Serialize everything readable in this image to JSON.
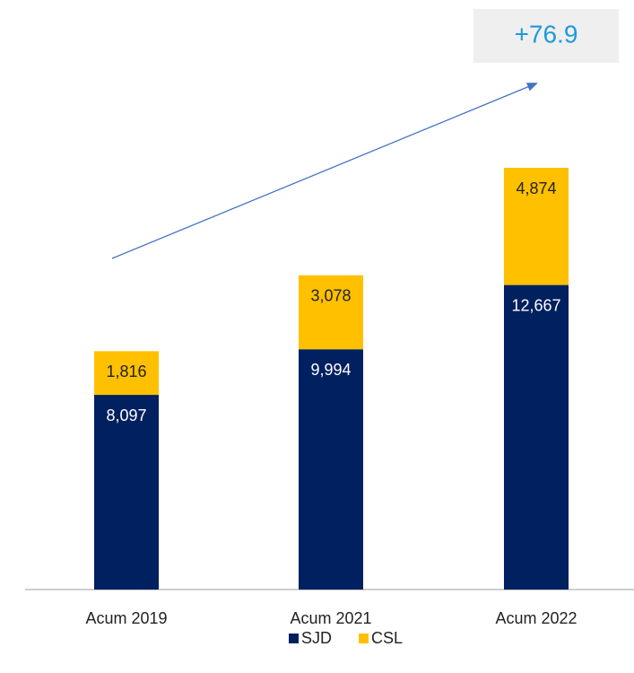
{
  "chart_data": {
    "type": "stacked_bar",
    "categories": [
      "Acum 2019",
      "Acum 2021",
      "Acum 2022"
    ],
    "series": [
      {
        "name": "SJD",
        "color": "#002060",
        "values": [
          8097,
          9994,
          12667
        ],
        "value_labels": [
          "8,097",
          "9,994",
          "12,667"
        ]
      },
      {
        "name": "CSL",
        "color": "#FFC000",
        "values": [
          1816,
          3078,
          4874
        ],
        "value_labels": [
          "1,816",
          "3,078",
          "4,874"
        ]
      }
    ],
    "annotation": "+76.9",
    "legend": "bottom"
  }
}
